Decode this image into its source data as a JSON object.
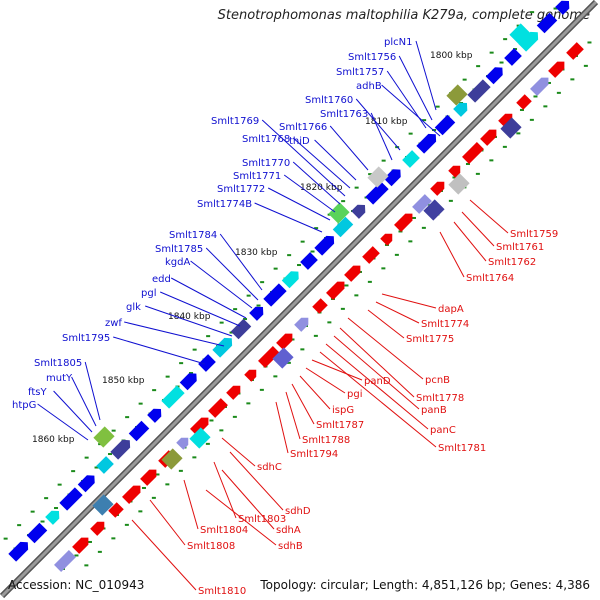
{
  "title": "Stenotrophomonas maltophilia K279a, complete genome",
  "accession": "Accession: NC_010943",
  "summary": "Topology: circular; Length: 4,851,126 bp; Genes: 4,386",
  "colors": {
    "backbone": "#7f7f7f",
    "forward_label": "#1010d0",
    "reverse_label": "#e01010",
    "forward_gene": "#0000ee",
    "reverse_gene": "#ee0000",
    "tick": "#1a8a1a"
  },
  "scale_labels": [
    "1800 kbp",
    "1810 kbp",
    "1820 kbp",
    "1830 kbp",
    "1840 kbp",
    "1850 kbp",
    "1860 kbp"
  ],
  "forward_genes": [
    "plcN1",
    "Smlt1756",
    "Smlt1757",
    "adhB",
    "Smlt1760",
    "Smlt1763",
    "Smlt1766",
    "thiD",
    "Smlt1768",
    "Smlt1769",
    "Smlt1770",
    "Smlt1771",
    "Smlt1772",
    "Smlt1774B",
    "Smlt1784",
    "Smlt1785",
    "kgdA",
    "edd",
    "pgl",
    "glk",
    "zwf",
    "Smlt1795",
    "Smlt1805",
    "mutY",
    "ftsY",
    "htpG"
  ],
  "reverse_genes": [
    "Smlt1759",
    "Smlt1761",
    "Smlt1762",
    "Smlt1764",
    "dapA",
    "Smlt1774",
    "Smlt1775",
    "pcnB",
    "Smlt1778",
    "panB",
    "panC",
    "Smlt1781",
    "panD",
    "pgi",
    "ispG",
    "Smlt1787",
    "Smlt1788",
    "Smlt1794",
    "sdhC",
    "sdhD",
    "Smlt1803",
    "sdhA",
    "Smlt1804",
    "sdhB",
    "Smlt1808",
    "Smlt1810"
  ]
}
